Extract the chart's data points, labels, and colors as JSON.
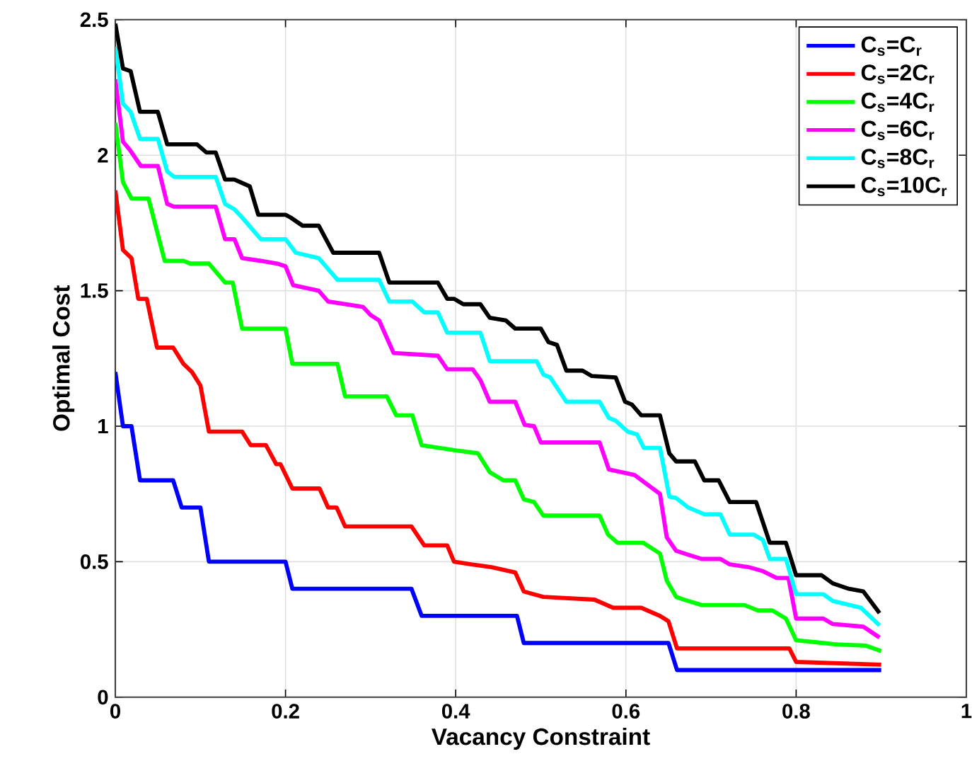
{
  "chart_data": {
    "type": "line",
    "xlabel": "Vacancy Constraint",
    "ylabel": "Optimal Cost",
    "xlim": [
      0,
      1
    ],
    "ylim": [
      0,
      2.5
    ],
    "xticks": [
      0,
      0.2,
      0.4,
      0.6,
      0.8,
      1
    ],
    "yticks": [
      0,
      0.5,
      1,
      1.5,
      2,
      2.5
    ],
    "grid": true,
    "legend": "top right",
    "marker": "none",
    "line_style": "solid",
    "series": [
      {
        "name": "C$_{s}$=C$_{r}$",
        "color": "#0000ff",
        "x": [
          0,
          0.009,
          0.019,
          0.029,
          0.068,
          0.078,
          0.1,
          0.11,
          0.2,
          0.208,
          0.348,
          0.36,
          0.472,
          0.48,
          0.65,
          0.66,
          0.9
        ],
        "values": [
          1.2,
          1.0,
          1.0,
          0.8,
          0.8,
          0.7,
          0.7,
          0.5,
          0.5,
          0.4,
          0.4,
          0.3,
          0.3,
          0.2,
          0.2,
          0.1,
          0.1
        ]
      },
      {
        "name": "C$_{s}$=2C$_{r}$",
        "color": "#ff0000",
        "x": [
          0,
          0.009,
          0.019,
          0.027,
          0.037,
          0.049,
          0.068,
          0.08,
          0.09,
          0.1,
          0.11,
          0.149,
          0.159,
          0.177,
          0.189,
          0.194,
          0.208,
          0.24,
          0.25,
          0.26,
          0.27,
          0.348,
          0.363,
          0.39,
          0.398,
          0.418,
          0.442,
          0.47,
          0.48,
          0.503,
          0.563,
          0.585,
          0.618,
          0.64,
          0.65,
          0.66,
          0.792,
          0.8,
          0.9
        ],
        "values": [
          1.87,
          1.65,
          1.62,
          1.47,
          1.47,
          1.29,
          1.29,
          1.23,
          1.2,
          1.15,
          0.98,
          0.98,
          0.93,
          0.93,
          0.86,
          0.86,
          0.77,
          0.77,
          0.7,
          0.7,
          0.63,
          0.63,
          0.56,
          0.56,
          0.5,
          0.49,
          0.48,
          0.46,
          0.39,
          0.37,
          0.36,
          0.33,
          0.33,
          0.3,
          0.28,
          0.18,
          0.18,
          0.13,
          0.12
        ]
      },
      {
        "name": "C$_{s}$=4C$_{r}$",
        "color": "#00ff00",
        "x": [
          0,
          0.009,
          0.019,
          0.039,
          0.058,
          0.08,
          0.088,
          0.11,
          0.129,
          0.138,
          0.149,
          0.2,
          0.208,
          0.261,
          0.27,
          0.319,
          0.33,
          0.349,
          0.36,
          0.401,
          0.426,
          0.44,
          0.456,
          0.47,
          0.48,
          0.492,
          0.503,
          0.569,
          0.579,
          0.59,
          0.62,
          0.64,
          0.648,
          0.659,
          0.668,
          0.689,
          0.739,
          0.755,
          0.772,
          0.788,
          0.8,
          0.832,
          0.846,
          0.882,
          0.9
        ],
        "values": [
          2.12,
          1.9,
          1.84,
          1.84,
          1.61,
          1.61,
          1.6,
          1.6,
          1.53,
          1.53,
          1.36,
          1.36,
          1.23,
          1.23,
          1.11,
          1.11,
          1.04,
          1.04,
          0.93,
          0.91,
          0.9,
          0.83,
          0.8,
          0.8,
          0.73,
          0.72,
          0.67,
          0.67,
          0.6,
          0.57,
          0.57,
          0.53,
          0.43,
          0.37,
          0.36,
          0.34,
          0.34,
          0.32,
          0.32,
          0.29,
          0.21,
          0.2,
          0.195,
          0.19,
          0.17
        ]
      },
      {
        "name": "C$_{s}$=6C$_{r}$",
        "color": "#ff00ff",
        "x": [
          0,
          0.009,
          0.017,
          0.03,
          0.05,
          0.061,
          0.069,
          0.118,
          0.129,
          0.14,
          0.149,
          0.171,
          0.19,
          0.2,
          0.209,
          0.239,
          0.25,
          0.291,
          0.3,
          0.31,
          0.327,
          0.379,
          0.39,
          0.42,
          0.429,
          0.44,
          0.47,
          0.481,
          0.492,
          0.5,
          0.569,
          0.58,
          0.61,
          0.64,
          0.648,
          0.659,
          0.673,
          0.689,
          0.711,
          0.722,
          0.744,
          0.761,
          0.777,
          0.791,
          0.8,
          0.832,
          0.843,
          0.879,
          0.898
        ],
        "values": [
          2.28,
          2.05,
          2.02,
          1.96,
          1.96,
          1.82,
          1.81,
          1.81,
          1.69,
          1.69,
          1.62,
          1.61,
          1.6,
          1.59,
          1.52,
          1.5,
          1.46,
          1.44,
          1.41,
          1.39,
          1.27,
          1.26,
          1.21,
          1.21,
          1.17,
          1.09,
          1.09,
          1.005,
          1.0,
          0.94,
          0.94,
          0.84,
          0.82,
          0.75,
          0.59,
          0.54,
          0.526,
          0.51,
          0.51,
          0.49,
          0.48,
          0.465,
          0.44,
          0.44,
          0.29,
          0.29,
          0.27,
          0.26,
          0.22
        ]
      },
      {
        "name": "C$_{s}$=8C$_{r}$",
        "color": "#00ffff",
        "x": [
          0,
          0.009,
          0.018,
          0.029,
          0.05,
          0.061,
          0.069,
          0.118,
          0.129,
          0.14,
          0.149,
          0.171,
          0.2,
          0.212,
          0.239,
          0.261,
          0.31,
          0.322,
          0.349,
          0.363,
          0.379,
          0.39,
          0.429,
          0.44,
          0.495,
          0.503,
          0.511,
          0.53,
          0.569,
          0.58,
          0.588,
          0.602,
          0.613,
          0.621,
          0.64,
          0.651,
          0.659,
          0.673,
          0.692,
          0.711,
          0.722,
          0.75,
          0.761,
          0.769,
          0.788,
          0.8,
          0.832,
          0.843,
          0.876,
          0.898
        ],
        "values": [
          2.4,
          2.19,
          2.16,
          2.06,
          2.06,
          1.94,
          1.92,
          1.92,
          1.82,
          1.8,
          1.77,
          1.69,
          1.69,
          1.64,
          1.62,
          1.54,
          1.54,
          1.46,
          1.46,
          1.42,
          1.42,
          1.345,
          1.345,
          1.24,
          1.24,
          1.19,
          1.18,
          1.09,
          1.09,
          1.03,
          1.02,
          0.98,
          0.97,
          0.92,
          0.92,
          0.74,
          0.735,
          0.7,
          0.675,
          0.675,
          0.6,
          0.6,
          0.58,
          0.51,
          0.51,
          0.38,
          0.38,
          0.355,
          0.33,
          0.265
        ]
      },
      {
        "name": "C$_{s}$=10C$_{r}$",
        "color": "#000000",
        "x": [
          0,
          0.009,
          0.018,
          0.029,
          0.05,
          0.061,
          0.096,
          0.107,
          0.118,
          0.129,
          0.14,
          0.158,
          0.168,
          0.2,
          0.206,
          0.22,
          0.239,
          0.256,
          0.31,
          0.322,
          0.379,
          0.39,
          0.398,
          0.409,
          0.429,
          0.44,
          0.459,
          0.47,
          0.5,
          0.509,
          0.519,
          0.53,
          0.549,
          0.56,
          0.588,
          0.599,
          0.607,
          0.618,
          0.64,
          0.651,
          0.659,
          0.681,
          0.692,
          0.709,
          0.722,
          0.753,
          0.769,
          0.788,
          0.8,
          0.83,
          0.843,
          0.862,
          0.879,
          0.898
        ],
        "values": [
          2.485,
          2.32,
          2.31,
          2.16,
          2.16,
          2.04,
          2.04,
          2.01,
          2.01,
          1.91,
          1.91,
          1.885,
          1.78,
          1.78,
          1.77,
          1.74,
          1.74,
          1.64,
          1.64,
          1.53,
          1.53,
          1.47,
          1.47,
          1.45,
          1.45,
          1.4,
          1.39,
          1.36,
          1.36,
          1.31,
          1.3,
          1.205,
          1.205,
          1.185,
          1.18,
          1.09,
          1.08,
          1.04,
          1.04,
          0.9,
          0.87,
          0.87,
          0.8,
          0.8,
          0.72,
          0.72,
          0.57,
          0.57,
          0.45,
          0.45,
          0.42,
          0.4,
          0.39,
          0.31
        ]
      }
    ]
  }
}
